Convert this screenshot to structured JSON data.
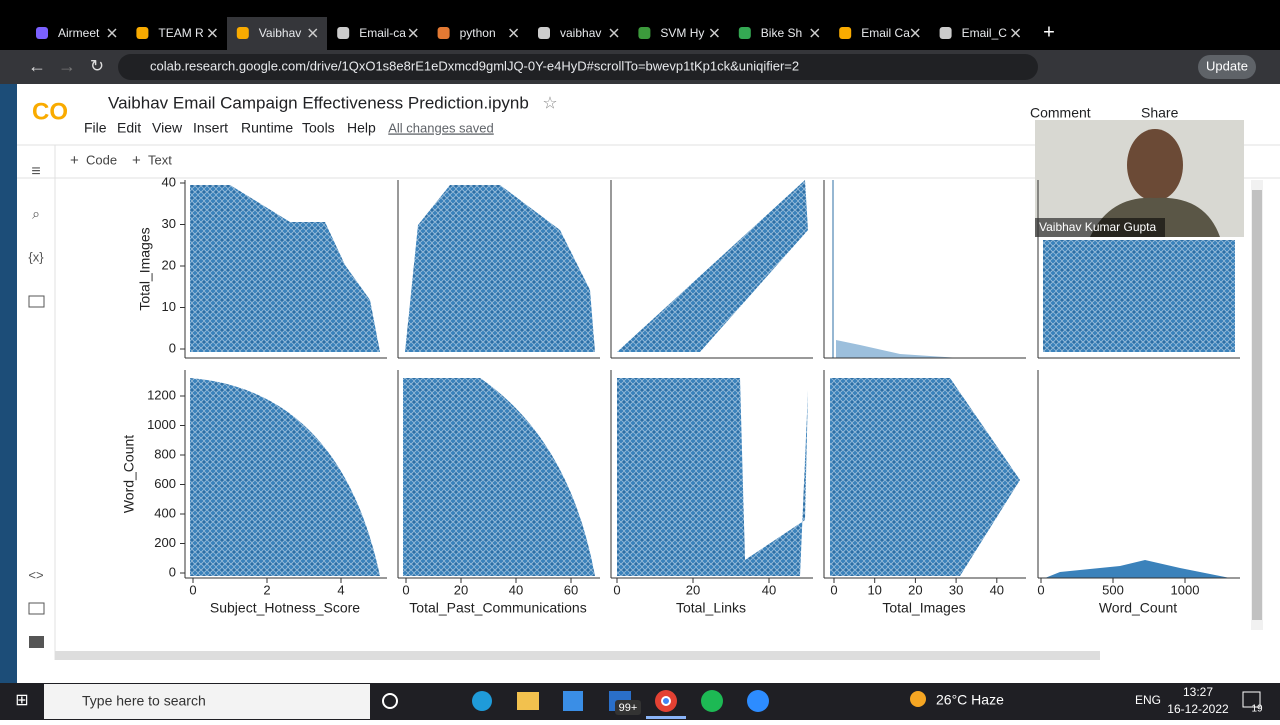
{
  "browser": {
    "tabs": [
      "Airmeet",
      "TEAM R",
      "Vaibhav",
      "Email-ca",
      "python",
      "vaibhav",
      "SVM Hy",
      "Bike Sh",
      "Email Ca",
      "Email_C"
    ],
    "url": "colab.research.google.com/drive/1QxO1s8e8rE1eDxmcd9gmlJQ-0Y-e4HyD#scrollTo=bwevp1tKp1ck&uniqifier=2",
    "update_button": "Update"
  },
  "notebook": {
    "title": "Vaibhav Email Campaign Effectiveness Prediction.ipynb",
    "menu": [
      "File",
      "Edit",
      "View",
      "Insert",
      "Runtime",
      "Tools",
      "Help"
    ],
    "save_status": "All changes saved",
    "actions": [
      "Comment",
      "Share"
    ],
    "toolbar": [
      "Code",
      "Text"
    ]
  },
  "pairplot": {
    "rows": [
      {
        "label": "Total_Images",
        "yticks": [
          0,
          10,
          20,
          30,
          40
        ]
      },
      {
        "label": "Word_Count",
        "yticks": [
          0,
          200,
          400,
          600,
          800,
          1000,
          1200
        ]
      }
    ],
    "columns": [
      {
        "label": "Subject_Hotness_Score",
        "xticks": [
          0,
          2,
          4
        ]
      },
      {
        "label": "Total_Past_Communications",
        "xticks": [
          0,
          20,
          40,
          60
        ]
      },
      {
        "label": "Total_Links",
        "xticks": [
          0,
          20,
          40
        ]
      },
      {
        "label": "Total_Images",
        "xticks": [
          0,
          10,
          20,
          30,
          40
        ]
      },
      {
        "label": "Word_Count",
        "xticks": [
          0,
          500,
          1000
        ]
      }
    ]
  },
  "video": {
    "participant": "Vaibhav Kumar Gupta"
  },
  "taskbar": {
    "search": "Type here to search",
    "weather": "26°C Haze",
    "language": "ENG",
    "time": "13:27",
    "date": "16-12-2022",
    "mail_badge": "99+",
    "notification_badge": "19"
  }
}
